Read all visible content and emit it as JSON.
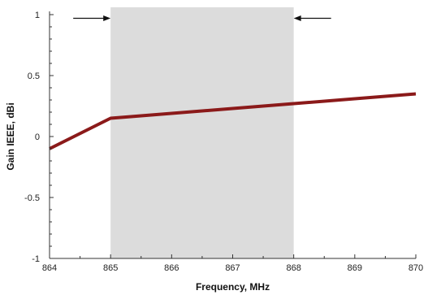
{
  "chart_data": {
    "type": "line",
    "xlabel": "Frequency, MHz",
    "ylabel": "Gain IEEE, dBi",
    "xlim": [
      864,
      870
    ],
    "ylim": [
      -1,
      1
    ],
    "x_ticks": [
      "864",
      "865",
      "866",
      "867",
      "868",
      "869",
      "870"
    ],
    "y_ticks": [
      "1",
      "0.5",
      "0",
      "-0.5",
      "-1"
    ],
    "grid": false,
    "legend": "none",
    "highlight_band": {
      "from": 865,
      "to": 868,
      "color": "#dcdcdc"
    },
    "band_arrows": [
      {
        "at": 865,
        "y": 0.97,
        "direction": "right"
      },
      {
        "at": 868,
        "y": 0.97,
        "direction": "left"
      }
    ],
    "series": [
      {
        "color": "#8b1a1a",
        "x": [
          864,
          865,
          866,
          867,
          868,
          869,
          870
        ],
        "y": [
          -0.1,
          0.15,
          0.19,
          0.23,
          0.27,
          0.31,
          0.35
        ]
      }
    ]
  }
}
